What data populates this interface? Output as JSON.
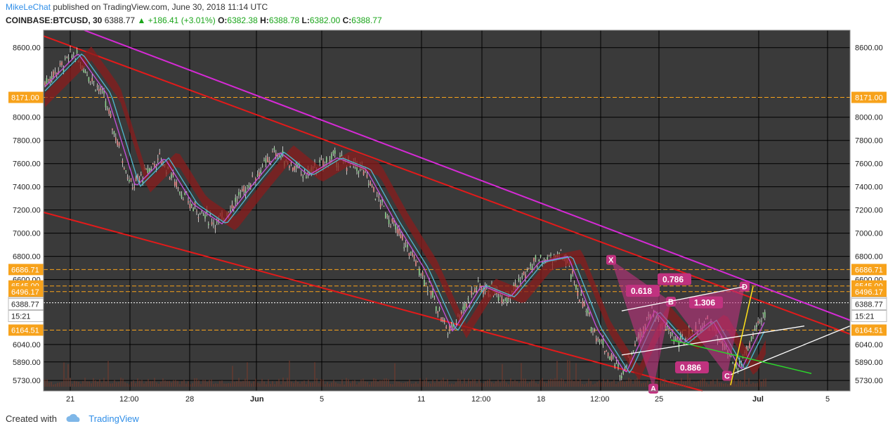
{
  "header": {
    "author": "MikeLeChat",
    "published_text": "published on TradingView.com, June 30, 2018 11:14 UTC",
    "symbol": "COINBASE:BTCUSD, 30",
    "price": "6388.77",
    "change": "▲ +186.41 (+3.01%)",
    "ohlc": {
      "o_label": "O:",
      "o": "6382.38",
      "h_label": "H:",
      "h": "6388.78",
      "l_label": "L:",
      "l": "6382.00",
      "c_label": "C:",
      "c": "6388.77"
    }
  },
  "footer": {
    "created_with": "Created with",
    "brand": "TradingView"
  },
  "colors": {
    "background": "#3a3a3a",
    "grid": "#000000",
    "channel": "#e31a1a",
    "trend": "#d62ad6",
    "level": "#f7a21b",
    "harmonic": "#c0327f",
    "white_lines": "#ffffff",
    "green_line": "#2bd62b",
    "yellow_line": "#ffe11a"
  },
  "chart_data": {
    "type": "candlestick",
    "symbol": "COINBASE:BTCUSD",
    "timeframe": "30",
    "ylim": [
      5640,
      8750
    ],
    "y_ticks": [
      5730,
      5890,
      6040,
      6600,
      6800,
      7000,
      7200,
      7400,
      7600,
      7800,
      8000,
      8600
    ],
    "x_labels": [
      "21",
      "12:00",
      "28",
      "Jun",
      "5",
      "11",
      "12:00",
      "18",
      "12:00",
      "25",
      "Jul",
      "5"
    ],
    "levels": [
      "8171.00",
      "6686.71",
      "6545.00",
      "6496.17",
      "6400.00",
      "6164.51"
    ],
    "current_price": "6388.77",
    "countdown": "15:21",
    "price_path": [
      8300,
      8550,
      8200,
      7400,
      7650,
      7250,
      7080,
      7400,
      7700,
      7500,
      7650,
      7550,
      7100,
      6700,
      6150,
      6550,
      6450,
      6750,
      6800,
      6180,
      5790,
      6330,
      6050,
      6250,
      5820,
      6330
    ],
    "harmonic_pattern": {
      "points": [
        "X",
        "A",
        "B",
        "C",
        "D"
      ],
      "ratios": [
        "0.618",
        "0.786",
        "1.306",
        "0.886"
      ]
    }
  }
}
